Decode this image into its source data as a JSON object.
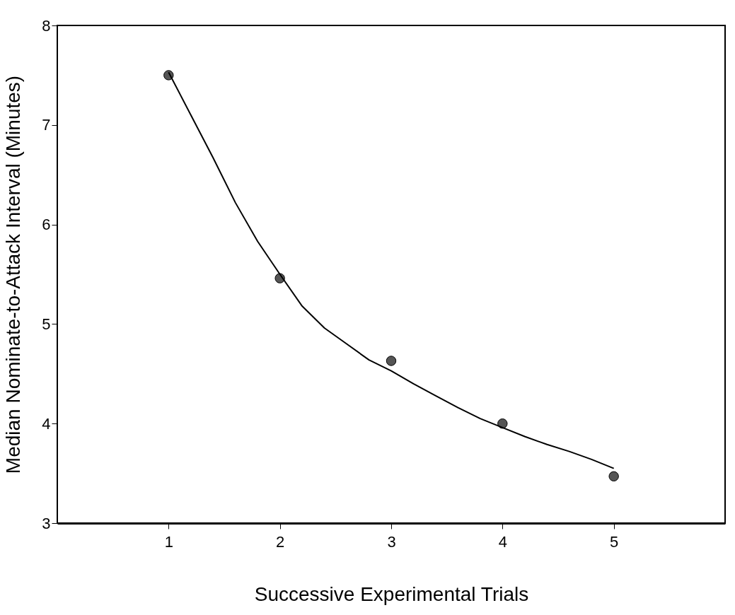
{
  "chart_data": {
    "type": "scatter",
    "xlabel": "Successive Experimental Trials",
    "ylabel": "Median Nominate-to-Attack Interval (Minutes)",
    "x": [
      1,
      2,
      3,
      4,
      5
    ],
    "series": [
      {
        "color": "#555555",
        "marker": "circle",
        "values": [
          7.5,
          5.46,
          4.63,
          4.0,
          3.47
        ]
      },
      {
        "type": "line",
        "color": "#000000",
        "marker": "none",
        "line_style": "solid",
        "x": [
          1,
          1.2,
          1.4,
          1.6,
          1.8,
          2,
          2.2,
          2.4,
          2.6,
          2.8,
          3,
          3.2,
          3.4,
          3.6,
          3.8,
          4,
          4.2,
          4.4,
          4.6,
          4.8,
          5
        ],
        "values": [
          7.53,
          7.1,
          6.67,
          6.22,
          5.83,
          5.5,
          5.18,
          4.96,
          4.8,
          4.64,
          4.53,
          4.4,
          4.28,
          4.16,
          4.05,
          3.96,
          3.87,
          3.79,
          3.72,
          3.64,
          3.55
        ]
      }
    ],
    "xlim": [
      0,
      6
    ],
    "xticks": [
      1,
      2,
      3,
      4,
      5
    ],
    "ylim": [
      3,
      8
    ],
    "yticks": [
      3,
      4,
      5,
      6,
      7,
      8
    ],
    "grid": false
  }
}
